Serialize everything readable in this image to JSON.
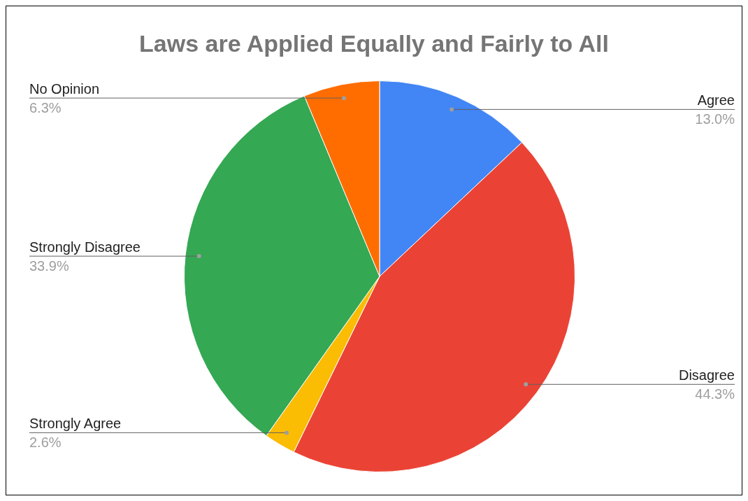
{
  "chart_data": {
    "type": "pie",
    "title": "Laws are Applied Equally and Fairly to All",
    "categories": [
      "Agree",
      "Disagree",
      "Strongly Agree",
      "Strongly Disagree",
      "No Opinion"
    ],
    "values": [
      13.0,
      44.3,
      2.6,
      33.9,
      6.3
    ],
    "colors": [
      "#4285f4",
      "#ea4335",
      "#fbbc04",
      "#34a853",
      "#ff6d01"
    ],
    "data_labels": true,
    "value_labels": [
      "13.0%",
      "44.3%",
      "2.6%",
      "33.9%",
      "6.3%"
    ],
    "legend": false
  }
}
